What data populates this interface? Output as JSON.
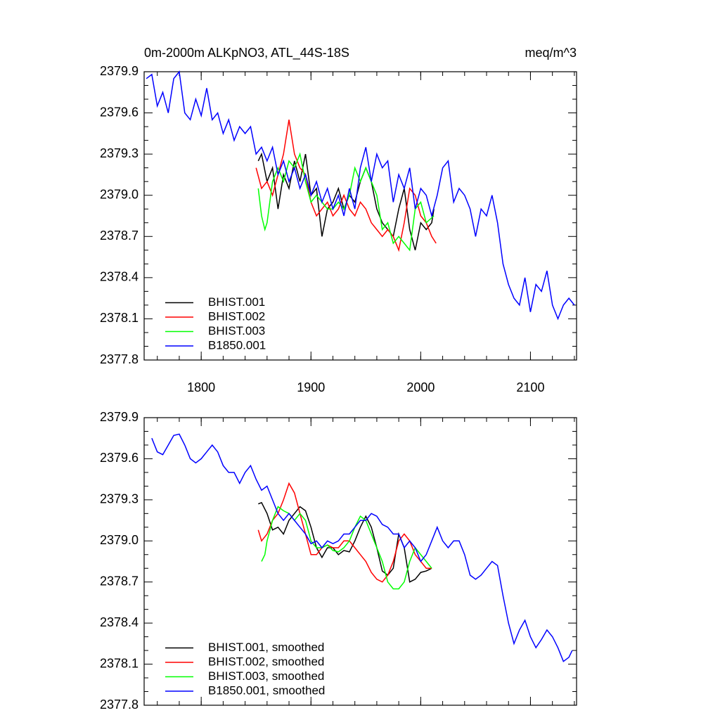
{
  "chart_data": [
    {
      "type": "line",
      "title": "0m-2000m ALKpNO3, ATL_44S-18S",
      "subtitle": "meq/m^3",
      "xlim": [
        1748,
        2142
      ],
      "xticks": [
        1800,
        1900,
        2000,
        2100
      ],
      "ylim": [
        2377.8,
        2379.9
      ],
      "yticks": [
        2377.8,
        2378.1,
        2378.4,
        2378.7,
        {
          "value": 2379,
          "label": "2379.0"
        },
        2379.3,
        2379.6,
        2379.9
      ],
      "legend": "lower left",
      "series": [
        {
          "name": "BHIST.001",
          "color": "#000000",
          "x": [
            1852,
            1855,
            1860,
            1865,
            1870,
            1875,
            1880,
            1885,
            1890,
            1895,
            1900,
            1905,
            1910,
            1915,
            1920,
            1925,
            1930,
            1935,
            1940,
            1945,
            1950,
            1955,
            1960,
            1965,
            1970,
            1975,
            1980,
            1985,
            1990,
            1995,
            2000,
            2005,
            2010,
            2012
          ],
          "values": [
            2379.25,
            2379.3,
            2379.1,
            2379.2,
            2378.9,
            2379.15,
            2379.05,
            2379.25,
            2379.1,
            2379.3,
            2379.0,
            2379.05,
            2378.7,
            2378.9,
            2378.95,
            2379.05,
            2378.9,
            2379.0,
            2378.95,
            2379.1,
            2379.2,
            2379.1,
            2378.9,
            2378.8,
            2378.75,
            2378.7,
            2378.9,
            2379.05,
            2378.75,
            2378.6,
            2378.8,
            2378.75,
            2378.8,
            2378.9
          ]
        },
        {
          "name": "BHIST.002",
          "color": "#ff0000",
          "x": [
            1850,
            1855,
            1860,
            1865,
            1870,
            1875,
            1880,
            1885,
            1890,
            1895,
            1900,
            1905,
            1910,
            1915,
            1920,
            1925,
            1930,
            1935,
            1940,
            1945,
            1950,
            1955,
            1960,
            1965,
            1970,
            1975,
            1980,
            1985,
            1990,
            1995,
            2000,
            2005,
            2010,
            2014
          ],
          "values": [
            2379.2,
            2379.05,
            2379.1,
            2379.0,
            2379.15,
            2379.3,
            2379.55,
            2379.3,
            2379.2,
            2379.15,
            2378.95,
            2378.85,
            2378.9,
            2378.95,
            2378.85,
            2378.9,
            2379.0,
            2378.9,
            2378.85,
            2378.95,
            2378.9,
            2378.8,
            2378.75,
            2378.7,
            2378.75,
            2378.7,
            2378.6,
            2378.8,
            2379.05,
            2379.0,
            2378.85,
            2378.8,
            2378.7,
            2378.65
          ]
        },
        {
          "name": "BHIST.003",
          "color": "#00ff00",
          "x": [
            1852,
            1855,
            1858,
            1860,
            1865,
            1870,
            1875,
            1880,
            1885,
            1890,
            1895,
            1900,
            1905,
            1910,
            1915,
            1920,
            1925,
            1930,
            1935,
            1940,
            1945,
            1950,
            1955,
            1960,
            1965,
            1970,
            1975,
            1980,
            1985,
            1990,
            1995,
            2000,
            2005,
            2012
          ],
          "values": [
            2379.05,
            2378.85,
            2378.75,
            2378.8,
            2379.1,
            2379.2,
            2379.1,
            2379.25,
            2379.2,
            2379.3,
            2379.1,
            2378.95,
            2379.0,
            2378.95,
            2378.9,
            2378.9,
            2378.95,
            2378.9,
            2379.0,
            2379.2,
            2379.1,
            2379.2,
            2379.1,
            2379.0,
            2378.75,
            2378.8,
            2378.65,
            2378.7,
            2378.65,
            2378.6,
            2378.9,
            2378.95,
            2378.8,
            2378.85
          ]
        },
        {
          "name": "B1850.001",
          "color": "#0000ff",
          "x": [
            1750,
            1755,
            1760,
            1765,
            1770,
            1775,
            1780,
            1785,
            1790,
            1795,
            1800,
            1805,
            1810,
            1815,
            1820,
            1825,
            1830,
            1835,
            1840,
            1845,
            1850,
            1855,
            1860,
            1865,
            1870,
            1875,
            1880,
            1885,
            1890,
            1895,
            1900,
            1905,
            1910,
            1915,
            1920,
            1925,
            1930,
            1935,
            1940,
            1945,
            1950,
            1955,
            1960,
            1965,
            1970,
            1975,
            1980,
            1985,
            1990,
            1995,
            2000,
            2005,
            2010,
            2015,
            2020,
            2025,
            2030,
            2035,
            2040,
            2045,
            2050,
            2055,
            2060,
            2065,
            2070,
            2075,
            2080,
            2085,
            2090,
            2095,
            2100,
            2105,
            2110,
            2115,
            2120,
            2125,
            2130,
            2135,
            2140
          ],
          "values": [
            2379.85,
            2379.88,
            2379.65,
            2379.75,
            2379.6,
            2379.85,
            2379.9,
            2379.6,
            2379.55,
            2379.7,
            2379.58,
            2379.78,
            2379.55,
            2379.6,
            2379.45,
            2379.55,
            2379.4,
            2379.5,
            2379.45,
            2379.5,
            2379.3,
            2379.35,
            2379.25,
            2379.35,
            2379.15,
            2379.25,
            2379.1,
            2379.2,
            2379.05,
            2379.15,
            2379.0,
            2379.1,
            2378.95,
            2379.05,
            2378.9,
            2379.0,
            2378.85,
            2379.05,
            2378.9,
            2379.2,
            2379.35,
            2379.1,
            2379.3,
            2379.2,
            2379.25,
            2378.95,
            2379.15,
            2379.05,
            2379.2,
            2378.9,
            2379.05,
            2379.0,
            2378.85,
            2379.0,
            2379.2,
            2379.25,
            2378.95,
            2379.05,
            2379.0,
            2378.9,
            2378.7,
            2378.9,
            2378.85,
            2379.0,
            2378.8,
            2378.5,
            2378.35,
            2378.25,
            2378.2,
            2378.4,
            2378.15,
            2378.35,
            2378.3,
            2378.45,
            2378.2,
            2378.1,
            2378.2,
            2378.25,
            2378.2
          ]
        }
      ]
    },
    {
      "type": "line",
      "xlim": [
        1748,
        2142
      ],
      "ylim": [
        2377.8,
        2379.9
      ],
      "yticks": [
        2377.8,
        2378.1,
        2378.4,
        2378.7,
        {
          "value": 2379,
          "label": "2379.0"
        },
        2379.3,
        2379.6,
        2379.9
      ],
      "legend": "lower left",
      "series": [
        {
          "name": "BHIST.001, smoothed",
          "color": "#000000",
          "x": [
            1852,
            1855,
            1860,
            1865,
            1870,
            1875,
            1880,
            1885,
            1890,
            1895,
            1900,
            1905,
            1910,
            1915,
            1920,
            1925,
            1930,
            1935,
            1940,
            1945,
            1950,
            1955,
            1960,
            1965,
            1970,
            1975,
            1980,
            1985,
            1990,
            1995,
            2000,
            2005,
            2010
          ],
          "values": [
            2379.27,
            2379.28,
            2379.2,
            2379.08,
            2379.1,
            2379.05,
            2379.15,
            2379.2,
            2379.25,
            2379.22,
            2379.1,
            2378.95,
            2378.88,
            2378.95,
            2378.95,
            2378.9,
            2378.93,
            2378.92,
            2379.0,
            2379.1,
            2379.18,
            2379.1,
            2378.95,
            2378.78,
            2378.75,
            2378.8,
            2379.05,
            2378.95,
            2378.7,
            2378.72,
            2378.77,
            2378.78,
            2378.8
          ]
        },
        {
          "name": "BHIST.002, smoothed",
          "color": "#ff0000",
          "x": [
            1852,
            1855,
            1860,
            1865,
            1870,
            1875,
            1880,
            1885,
            1890,
            1895,
            1900,
            1905,
            1910,
            1915,
            1920,
            1925,
            1930,
            1935,
            1940,
            1945,
            1950,
            1955,
            1960,
            1965,
            1970,
            1975,
            1980,
            1985,
            1990,
            1995,
            2000,
            2005,
            2010
          ],
          "values": [
            2379.08,
            2379.0,
            2379.05,
            2379.15,
            2379.2,
            2379.3,
            2379.42,
            2379.35,
            2379.2,
            2379.05,
            2378.9,
            2378.9,
            2378.95,
            2378.97,
            2378.95,
            2378.95,
            2379.0,
            2379.0,
            2378.95,
            2378.9,
            2378.85,
            2378.77,
            2378.72,
            2378.7,
            2378.75,
            2378.85,
            2379.0,
            2379.05,
            2379.0,
            2378.9,
            2378.85,
            2378.8,
            2378.8
          ]
        },
        {
          "name": "BHIST.003, smoothed",
          "color": "#00ff00",
          "x": [
            1855,
            1858,
            1860,
            1865,
            1870,
            1875,
            1880,
            1885,
            1890,
            1895,
            1900,
            1905,
            1910,
            1915,
            1920,
            1925,
            1930,
            1935,
            1940,
            1945,
            1950,
            1955,
            1960,
            1965,
            1970,
            1975,
            1980,
            1985,
            1990,
            1995,
            2000,
            2005,
            2010
          ],
          "values": [
            2378.85,
            2378.9,
            2379.0,
            2379.15,
            2379.25,
            2379.22,
            2379.2,
            2379.15,
            2379.2,
            2379.15,
            2379.0,
            2378.95,
            2378.95,
            2378.97,
            2378.93,
            2378.92,
            2378.95,
            2379.0,
            2379.1,
            2379.18,
            2379.15,
            2379.05,
            2378.95,
            2378.85,
            2378.7,
            2378.65,
            2378.65,
            2378.7,
            2378.85,
            2378.95,
            2378.9,
            2378.85,
            2378.8
          ]
        },
        {
          "name": "B1850.001, smoothed",
          "color": "#0000ff",
          "x": [
            1755,
            1760,
            1765,
            1770,
            1775,
            1780,
            1785,
            1790,
            1795,
            1800,
            1805,
            1810,
            1815,
            1820,
            1825,
            1830,
            1835,
            1840,
            1845,
            1850,
            1855,
            1860,
            1865,
            1870,
            1875,
            1880,
            1885,
            1890,
            1895,
            1900,
            1905,
            1910,
            1915,
            1920,
            1925,
            1930,
            1935,
            1940,
            1945,
            1950,
            1955,
            1960,
            1965,
            1970,
            1975,
            1980,
            1985,
            1990,
            1995,
            2000,
            2005,
            2010,
            2015,
            2020,
            2025,
            2030,
            2035,
            2040,
            2045,
            2050,
            2055,
            2060,
            2065,
            2070,
            2075,
            2080,
            2085,
            2090,
            2095,
            2100,
            2105,
            2110,
            2115,
            2120,
            2125,
            2130,
            2135,
            2138
          ],
          "values": [
            2379.75,
            2379.65,
            2379.63,
            2379.7,
            2379.77,
            2379.78,
            2379.7,
            2379.6,
            2379.57,
            2379.6,
            2379.65,
            2379.7,
            2379.65,
            2379.55,
            2379.5,
            2379.5,
            2379.42,
            2379.5,
            2379.55,
            2379.45,
            2379.37,
            2379.4,
            2379.3,
            2379.2,
            2379.15,
            2379.2,
            2379.15,
            2379.1,
            2379.05,
            2378.98,
            2379.0,
            2378.95,
            2379.0,
            2378.98,
            2379.0,
            2379.05,
            2379.05,
            2379.1,
            2379.15,
            2379.15,
            2379.2,
            2379.18,
            2379.12,
            2379.1,
            2379.05,
            2379.05,
            2378.95,
            2379.0,
            2378.95,
            2378.85,
            2378.9,
            2379.0,
            2379.1,
            2379.0,
            2378.95,
            2379.0,
            2379.0,
            2378.9,
            2378.75,
            2378.72,
            2378.75,
            2378.8,
            2378.85,
            2378.82,
            2378.6,
            2378.4,
            2378.25,
            2378.35,
            2378.42,
            2378.3,
            2378.22,
            2378.28,
            2378.35,
            2378.3,
            2378.22,
            2378.12,
            2378.15,
            2378.2
          ]
        }
      ]
    }
  ]
}
